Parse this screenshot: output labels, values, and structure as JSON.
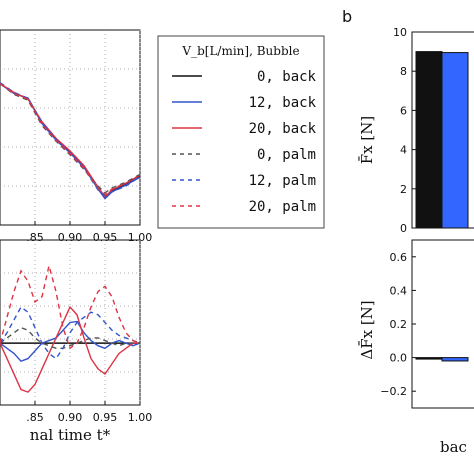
{
  "chart_data": [
    {
      "type": "line",
      "panel": "top-left",
      "xlim": [
        0.8,
        1.0
      ],
      "x": [
        0.8,
        0.82,
        0.84,
        0.86,
        0.88,
        0.9,
        0.92,
        0.94,
        0.95,
        0.96,
        0.98,
        1.0
      ],
      "series": [
        {
          "name": "0, back",
          "color": "#111111",
          "dash": "solid",
          "values": [
            0.95,
            0.85,
            0.8,
            0.55,
            0.38,
            0.25,
            0.1,
            -0.12,
            -0.22,
            -0.15,
            -0.08,
            0.0
          ]
        },
        {
          "name": "12, back",
          "color": "#3355cc",
          "dash": "solid",
          "values": [
            0.95,
            0.85,
            0.8,
            0.54,
            0.37,
            0.24,
            0.09,
            -0.13,
            -0.23,
            -0.16,
            -0.09,
            -0.01
          ]
        },
        {
          "name": "20, back",
          "color": "#dd3344",
          "dash": "solid",
          "values": [
            0.95,
            0.86,
            0.79,
            0.56,
            0.39,
            0.26,
            0.11,
            -0.11,
            -0.21,
            -0.14,
            -0.07,
            0.01
          ]
        },
        {
          "name": "0, palm",
          "color": "#555555",
          "dash": "dashed",
          "values": [
            0.95,
            0.84,
            0.78,
            0.52,
            0.36,
            0.22,
            0.07,
            -0.1,
            -0.17,
            -0.12,
            -0.06,
            0.02
          ]
        },
        {
          "name": "12, palm",
          "color": "#3355cc",
          "dash": "dashed",
          "values": [
            0.96,
            0.86,
            0.8,
            0.55,
            0.38,
            0.24,
            0.08,
            -0.14,
            -0.2,
            -0.16,
            -0.1,
            0.0
          ]
        },
        {
          "name": "20, palm",
          "color": "#dd3344",
          "dash": "dashed",
          "values": [
            0.95,
            0.85,
            0.79,
            0.53,
            0.37,
            0.23,
            0.08,
            -0.12,
            -0.19,
            -0.13,
            -0.07,
            0.01
          ]
        }
      ],
      "ylim": [
        -0.5,
        1.5
      ],
      "xticks": [
        0.85,
        0.9,
        0.95,
        1.0
      ],
      "xticklabels": [
        ".85",
        "0.90",
        "0.95",
        "1.00"
      ]
    },
    {
      "type": "line",
      "panel": "bottom-left",
      "xlim": [
        0.8,
        1.0
      ],
      "ylim": [
        -1.2,
        2.0
      ],
      "x": [
        0.8,
        0.81,
        0.82,
        0.83,
        0.84,
        0.85,
        0.86,
        0.87,
        0.88,
        0.89,
        0.9,
        0.91,
        0.92,
        0.93,
        0.94,
        0.95,
        0.96,
        0.97,
        0.98,
        0.99,
        1.0
      ],
      "series": [
        {
          "name": "0, back",
          "color": "#111111",
          "dash": "solid",
          "values": [
            0,
            0,
            0,
            0,
            0,
            0,
            0,
            0,
            0,
            0,
            0,
            0,
            0,
            0,
            0,
            0,
            0,
            0,
            0,
            0,
            0
          ]
        },
        {
          "name": "12, back",
          "color": "#3355cc",
          "dash": "solid",
          "values": [
            0,
            -0.1,
            -0.2,
            -0.35,
            -0.3,
            -0.15,
            0.0,
            0.05,
            0.1,
            0.25,
            0.4,
            0.42,
            0.2,
            0.05,
            -0.05,
            -0.1,
            0.0,
            0.05,
            0.0,
            -0.05,
            0.0
          ]
        },
        {
          "name": "20, back",
          "color": "#dd3344",
          "dash": "solid",
          "values": [
            0,
            -0.3,
            -0.6,
            -0.9,
            -0.95,
            -0.8,
            -0.5,
            -0.2,
            0.1,
            0.4,
            0.7,
            0.55,
            0.1,
            -0.3,
            -0.5,
            -0.6,
            -0.4,
            -0.2,
            -0.1,
            0.0,
            0.0
          ]
        },
        {
          "name": "0, palm",
          "color": "#555555",
          "dash": "dashed",
          "values": [
            0,
            0.1,
            0.2,
            0.3,
            0.25,
            0.1,
            0.0,
            -0.05,
            -0.1,
            -0.1,
            -0.05,
            0.0,
            0.05,
            0.1,
            0.1,
            0.05,
            0.0,
            -0.05,
            0.0,
            0.0,
            0.0
          ]
        },
        {
          "name": "12, palm",
          "color": "#3355cc",
          "dash": "dashed",
          "values": [
            0,
            0.2,
            0.45,
            0.7,
            0.6,
            0.3,
            0.0,
            -0.2,
            -0.3,
            -0.1,
            0.2,
            0.4,
            0.5,
            0.6,
            0.55,
            0.4,
            0.25,
            0.15,
            0.1,
            0.05,
            0.0
          ]
        },
        {
          "name": "20, palm",
          "color": "#dd3344",
          "dash": "dashed",
          "values": [
            0,
            0.5,
            1.0,
            1.4,
            1.2,
            0.8,
            0.9,
            1.5,
            1.0,
            0.3,
            -0.1,
            0.0,
            0.3,
            0.7,
            1.0,
            1.1,
            0.9,
            0.5,
            0.2,
            0.05,
            0.0
          ]
        }
      ],
      "xticks": [
        0.85,
        0.9,
        0.95,
        1.0
      ],
      "xticklabels": [
        ".85",
        "0.90",
        "0.95",
        "1.00"
      ],
      "xlabel": "nal time  t*"
    },
    {
      "type": "bar",
      "panel": "top-right",
      "panel_letter": "b",
      "ylabel": "F̄x [N]",
      "ylim": [
        0,
        10
      ],
      "yticks": [
        0,
        2,
        4,
        6,
        8,
        10
      ],
      "series": [
        {
          "name": "0, back",
          "color": "#111111",
          "values": [
            9.0
          ]
        },
        {
          "name": "12, back",
          "color": "#3366ff",
          "values": [
            8.95
          ]
        }
      ]
    },
    {
      "type": "bar",
      "panel": "bottom-right",
      "ylabel": "ΔF̄x [N]",
      "ylim": [
        -0.3,
        0.7
      ],
      "yticks": [
        -0.2,
        0.0,
        0.2,
        0.4,
        0.6
      ],
      "yticklabels": [
        "−0.2",
        "0.0",
        "0.2",
        "0.4",
        "0.6"
      ],
      "categories": [
        "bac"
      ],
      "series": [
        {
          "name": "0, back",
          "color": "#111111",
          "values": [
            0.0
          ]
        },
        {
          "name": "12, back",
          "color": "#3366ff",
          "values": [
            -0.02
          ]
        }
      ]
    }
  ],
  "legend": {
    "title": "V_b[L/min],  Bubble",
    "entries": [
      {
        "label": "0, back",
        "color": "#111111",
        "dash": "solid"
      },
      {
        "label": "12, back",
        "color": "#3355cc",
        "dash": "solid"
      },
      {
        "label": "20, back",
        "color": "#dd3344",
        "dash": "solid"
      },
      {
        "label": "0, palm",
        "color": "#555555",
        "dash": "dashed"
      },
      {
        "label": "12, palm",
        "color": "#3355cc",
        "dash": "dashed"
      },
      {
        "label": "20, palm",
        "color": "#dd3344",
        "dash": "dashed"
      }
    ]
  }
}
